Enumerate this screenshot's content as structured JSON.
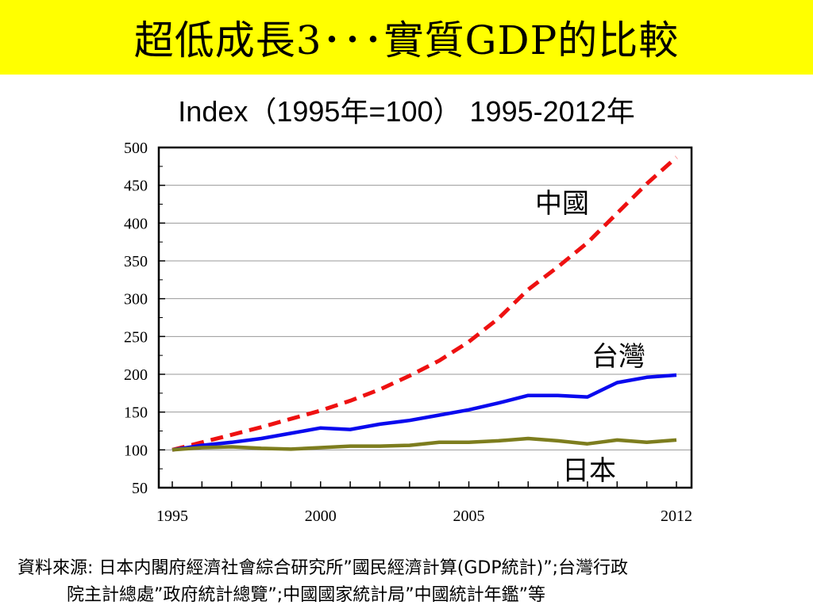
{
  "slide": {
    "title": "超低成長3･･･實質GDP的比較",
    "subtitle": "Index（1995年=100）  1995-2012年",
    "source_line1": "資料來源: 日本内閣府經濟社會綜合研究所”國民經濟計算(GDP統計)”;台灣行政",
    "source_line2": "院主計總處”政府統計總覽”;中國國家統計局”中國統計年鑑”等"
  },
  "colors": {
    "title_bg": "#ffff00",
    "china": "#ee1111",
    "taiwan": "#0a0aee",
    "japan": "#7d7d1e"
  },
  "chart_data": {
    "type": "line",
    "title": "Index（1995年=100）  1995-2012年",
    "xlabel": "",
    "ylabel": "",
    "ylim": [
      50,
      500
    ],
    "yticks": [
      50,
      100,
      150,
      200,
      250,
      300,
      350,
      400,
      450,
      500
    ],
    "xlim": [
      1995,
      2012
    ],
    "xtick_labels": [
      1995,
      2000,
      2005,
      2012
    ],
    "grid": true,
    "x": [
      1995,
      1996,
      1997,
      1998,
      1999,
      2000,
      2001,
      2002,
      2003,
      2004,
      2005,
      2006,
      2007,
      2008,
      2009,
      2010,
      2011,
      2012
    ],
    "series": [
      {
        "name": "中國",
        "style": "dashed",
        "color": "#ee1111",
        "values": [
          100,
          110,
          120,
          130,
          141,
          152,
          165,
          180,
          198,
          218,
          243,
          274,
          312,
          342,
          374,
          413,
          452,
          487
        ]
      },
      {
        "name": "台灣",
        "style": "solid",
        "color": "#0a0aee",
        "values": [
          100,
          106,
          110,
          115,
          122,
          129,
          127,
          134,
          139,
          146,
          153,
          162,
          172,
          172,
          170,
          189,
          196,
          199
        ]
      },
      {
        "name": "日本",
        "style": "solid",
        "color": "#7d7d1e",
        "values": [
          100,
          103,
          104,
          102,
          101,
          103,
          105,
          105,
          106,
          110,
          110,
          112,
          115,
          112,
          108,
          113,
          110,
          113
        ]
      }
    ]
  }
}
